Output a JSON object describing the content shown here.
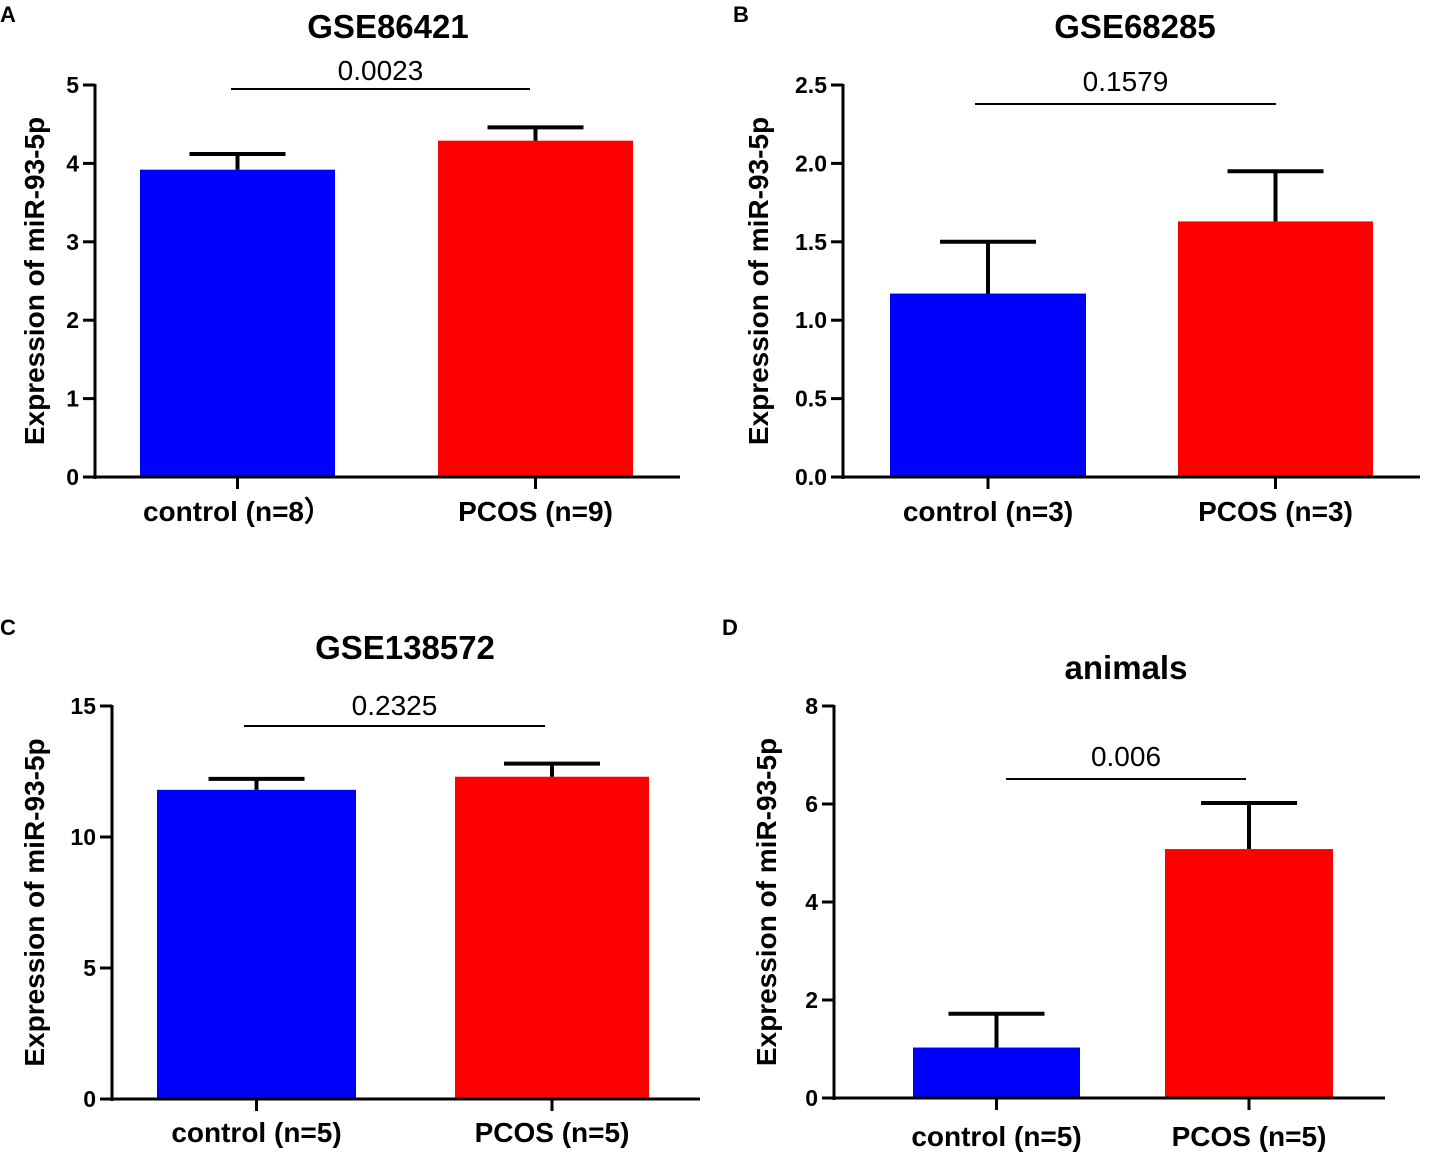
{
  "figure": {
    "panels": [
      "A",
      "B",
      "C",
      "D"
    ]
  },
  "chart_data": [
    {
      "panel": "A",
      "type": "bar",
      "title": "GSE86421",
      "ylabel": "Expression of miR-93-5p",
      "xlabel": "",
      "ylim": [
        0,
        5
      ],
      "yticks": [
        0,
        1,
        2,
        3,
        4,
        5
      ],
      "ytick_labels": [
        "0",
        "1",
        "2",
        "3",
        "4",
        "5"
      ],
      "categories": [
        "control (n=8）",
        "PCOS (n=9)"
      ],
      "values": [
        3.92,
        4.29
      ],
      "errors": [
        0.2,
        0.17
      ],
      "colors": [
        "#0000ff",
        "#ff0000"
      ],
      "p_value": "0.0023",
      "grid": false
    },
    {
      "panel": "B",
      "type": "bar",
      "title": "GSE68285",
      "ylabel": "Expression of miR-93-5p",
      "xlabel": "",
      "ylim": [
        0,
        2.5
      ],
      "yticks": [
        0,
        0.5,
        1.0,
        1.5,
        2.0,
        2.5
      ],
      "ytick_labels": [
        "0.0",
        "0.5",
        "1.0",
        "1.5",
        "2.0",
        "2.5"
      ],
      "categories": [
        "control (n=3)",
        "PCOS (n=3)"
      ],
      "values": [
        1.17,
        1.63
      ],
      "errors": [
        0.33,
        0.32
      ],
      "colors": [
        "#0000ff",
        "#ff0000"
      ],
      "p_value": "0.1579",
      "grid": false
    },
    {
      "panel": "C",
      "type": "bar",
      "title": "GSE138572",
      "ylabel": "Expression of miR-93-5p",
      "xlabel": "",
      "ylim": [
        0,
        15
      ],
      "yticks": [
        0,
        5,
        10,
        15
      ],
      "ytick_labels": [
        "0",
        "5",
        "10",
        "15"
      ],
      "categories": [
        "control (n=5)",
        "PCOS (n=5)"
      ],
      "values": [
        11.8,
        12.3
      ],
      "errors": [
        0.42,
        0.5
      ],
      "colors": [
        "#0000ff",
        "#ff0000"
      ],
      "p_value": "0.2325",
      "grid": false
    },
    {
      "panel": "D",
      "type": "bar",
      "title": "animals",
      "ylabel": "Expression of miR-93-5p",
      "xlabel": "",
      "ylim": [
        0,
        8
      ],
      "yticks": [
        0,
        2,
        4,
        6,
        8
      ],
      "ytick_labels": [
        "0",
        "2",
        "4",
        "6",
        "8"
      ],
      "categories": [
        "control (n=5)",
        "PCOS (n=5)"
      ],
      "values": [
        1.03,
        5.08
      ],
      "errors": [
        0.69,
        0.94
      ],
      "colors": [
        "#0000ff",
        "#ff0000"
      ],
      "p_value": "0.006",
      "grid": false
    }
  ]
}
